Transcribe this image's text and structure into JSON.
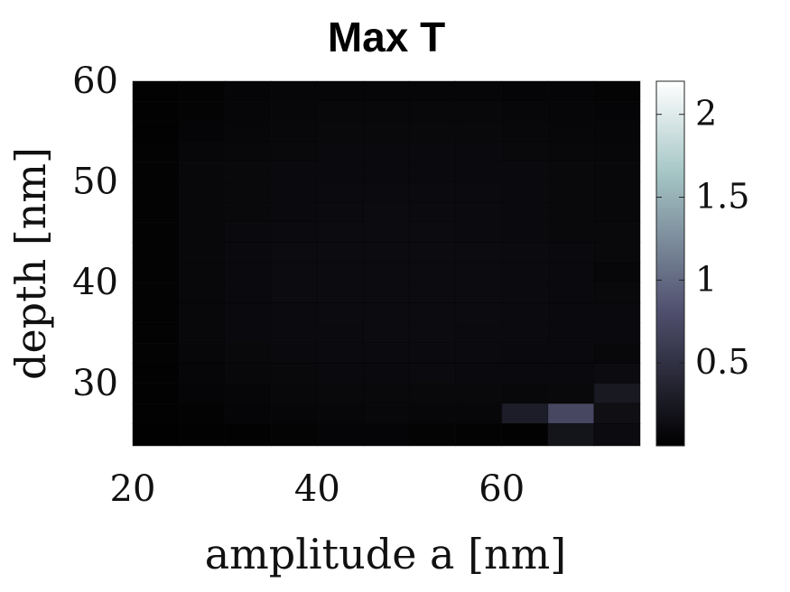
{
  "chart_data": {
    "type": "heatmap",
    "title": "Max T",
    "xlabel": "amplitude a [nm]",
    "ylabel": "depth [nm]",
    "xlim": [
      20,
      75
    ],
    "ylim": [
      23.8,
      60
    ],
    "x_ticks": [
      20,
      40,
      60
    ],
    "y_ticks": [
      30,
      40,
      50,
      60
    ],
    "x_tick_labels": [
      "20",
      "40",
      "60"
    ],
    "y_tick_labels": [
      "30",
      "40",
      "50",
      "60"
    ],
    "x_edges": [
      20,
      25,
      30,
      35,
      40,
      45,
      50,
      55,
      60,
      65,
      70,
      75
    ],
    "y_edges": [
      60,
      58,
      56,
      54,
      52,
      50,
      48,
      46,
      44,
      42,
      40,
      38,
      36,
      34,
      32,
      30,
      28,
      26,
      23.8
    ],
    "values": [
      [
        0.02,
        0.03,
        0.05,
        0.06,
        0.06,
        0.06,
        0.06,
        0.06,
        0.05,
        0.05,
        0.04
      ],
      [
        0.02,
        0.04,
        0.06,
        0.07,
        0.08,
        0.08,
        0.08,
        0.08,
        0.07,
        0.06,
        0.05
      ],
      [
        0.02,
        0.05,
        0.07,
        0.08,
        0.09,
        0.09,
        0.09,
        0.09,
        0.08,
        0.07,
        0.06
      ],
      [
        0.03,
        0.07,
        0.08,
        0.09,
        0.1,
        0.1,
        0.1,
        0.1,
        0.09,
        0.08,
        0.07
      ],
      [
        0.03,
        0.08,
        0.09,
        0.1,
        0.1,
        0.1,
        0.1,
        0.1,
        0.1,
        0.09,
        0.08
      ],
      [
        0.03,
        0.08,
        0.09,
        0.1,
        0.11,
        0.11,
        0.11,
        0.11,
        0.1,
        0.09,
        0.08
      ],
      [
        0.03,
        0.08,
        0.09,
        0.1,
        0.11,
        0.12,
        0.11,
        0.11,
        0.1,
        0.09,
        0.08
      ],
      [
        0.03,
        0.08,
        0.1,
        0.11,
        0.12,
        0.12,
        0.12,
        0.11,
        0.1,
        0.09,
        0.09
      ],
      [
        0.03,
        0.08,
        0.1,
        0.12,
        0.12,
        0.12,
        0.12,
        0.12,
        0.11,
        0.1,
        0.09
      ],
      [
        0.03,
        0.08,
        0.1,
        0.12,
        0.12,
        0.12,
        0.12,
        0.12,
        0.11,
        0.1,
        0.07
      ],
      [
        0.03,
        0.08,
        0.1,
        0.12,
        0.12,
        0.12,
        0.12,
        0.12,
        0.11,
        0.1,
        0.09
      ],
      [
        0.03,
        0.08,
        0.1,
        0.11,
        0.12,
        0.12,
        0.12,
        0.12,
        0.11,
        0.1,
        0.1
      ],
      [
        0.03,
        0.08,
        0.1,
        0.11,
        0.11,
        0.12,
        0.12,
        0.11,
        0.11,
        0.1,
        0.1
      ],
      [
        0.03,
        0.07,
        0.09,
        0.1,
        0.11,
        0.11,
        0.11,
        0.11,
        0.1,
        0.1,
        0.08
      ],
      [
        0.02,
        0.06,
        0.08,
        0.09,
        0.1,
        0.1,
        0.11,
        0.1,
        0.1,
        0.1,
        0.12
      ],
      [
        0.02,
        0.05,
        0.06,
        0.08,
        0.09,
        0.09,
        0.09,
        0.09,
        0.08,
        0.09,
        0.25
      ],
      [
        0.02,
        0.03,
        0.05,
        0.06,
        0.07,
        0.08,
        0.07,
        0.07,
        0.3,
        0.72,
        0.15
      ],
      [
        0.01,
        0.02,
        0.02,
        0.04,
        0.05,
        0.05,
        0.04,
        0.03,
        0.02,
        0.2,
        0.12
      ]
    ],
    "colorbar": {
      "min": 0.0,
      "max": 2.2,
      "ticks": [
        0.5,
        1,
        1.5,
        2
      ],
      "tick_labels": [
        "0.5",
        "1",
        "1.5",
        "2"
      ],
      "colormap": "bone"
    },
    "grid": false
  }
}
